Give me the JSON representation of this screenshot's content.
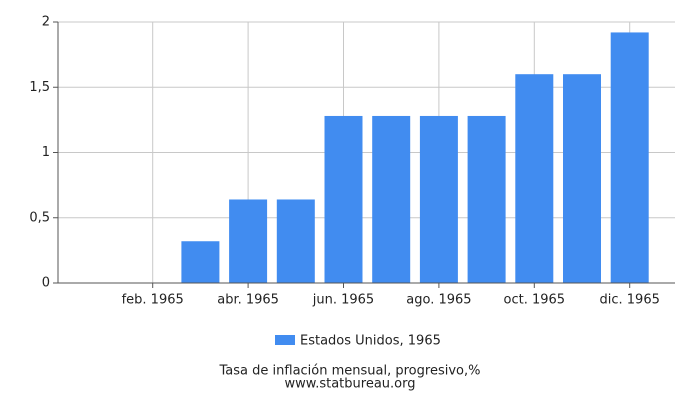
{
  "chart_data": {
    "type": "bar",
    "categories": [
      null,
      "feb. 1965",
      null,
      "abr. 1965",
      null,
      "jun. 1965",
      null,
      "ago. 1965",
      null,
      "oct. 1965",
      null,
      "dic. 1965"
    ],
    "series": [
      {
        "name": "Estados Unidos, 1965",
        "color": "#418cf0",
        "values": [
          0,
          0,
          0.32,
          0.64,
          0.64,
          1.28,
          1.28,
          1.28,
          1.28,
          1.6,
          1.6,
          1.92
        ]
      }
    ],
    "ylim": [
      0,
      2
    ],
    "yticks": [
      0,
      {
        "value": 0.5,
        "label": "0,5"
      },
      1,
      {
        "value": 1.5,
        "label": "1,5"
      },
      2
    ],
    "grid": true,
    "legend": "bottom",
    "caption": "Tasa de inflación mensual, progresivo,%",
    "source": "www.statbureau.org"
  }
}
